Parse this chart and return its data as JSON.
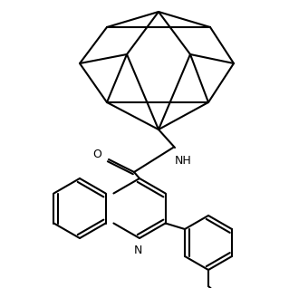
{
  "bg_color": "#ffffff",
  "line_color": "#000000",
  "lw": 1.5,
  "font_size": 9,
  "NH_label": "NH",
  "O_label": "O",
  "N_label": "N"
}
